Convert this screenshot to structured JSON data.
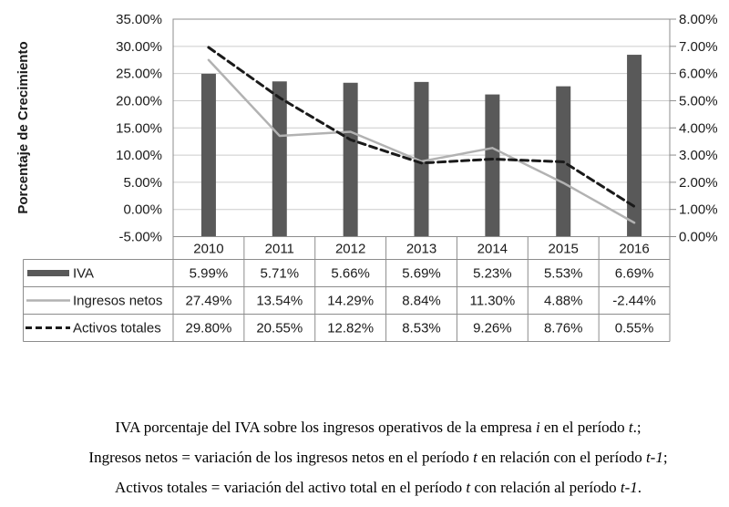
{
  "chart_data": {
    "type": "combo-bar-line",
    "title": "",
    "categories": [
      "2010",
      "2011",
      "2012",
      "2013",
      "2014",
      "2015",
      "2016"
    ],
    "series": [
      {
        "name": "IVA",
        "type": "bar",
        "axis": "right",
        "unit": "%",
        "values": [
          5.99,
          5.71,
          5.66,
          5.69,
          5.23,
          5.53,
          6.69
        ],
        "color": "#595959"
      },
      {
        "name": "Ingresos netos",
        "type": "line",
        "style": "solid",
        "axis": "left",
        "unit": "%",
        "values": [
          27.49,
          13.54,
          14.29,
          8.84,
          11.3,
          4.88,
          -2.44
        ],
        "color": "#b2b2b2"
      },
      {
        "name": "Activos totales",
        "type": "line",
        "style": "dashed",
        "axis": "left",
        "unit": "%",
        "values": [
          29.8,
          20.55,
          12.82,
          8.53,
          9.26,
          8.76,
          0.55
        ],
        "color": "#1a1a1a"
      }
    ],
    "left_axis": {
      "title": "Porcentaje de Crecimiento",
      "min": -5,
      "max": 35,
      "step": 5,
      "tick_labels": [
        "35.00%",
        "30.00%",
        "25.00%",
        "20.00%",
        "15.00%",
        "10.00%",
        "5.00%",
        "0.00%",
        "-5.00%"
      ]
    },
    "right_axis": {
      "min": 0,
      "max": 8,
      "step": 1,
      "tick_labels": [
        "8.00%",
        "7.00%",
        "6.00%",
        "5.00%",
        "4.00%",
        "3.00%",
        "2.00%",
        "1.00%",
        "0.00%"
      ]
    },
    "grid": true,
    "legend_position": "bottom-table"
  },
  "data_table": {
    "header": [
      "2010",
      "2011",
      "2012",
      "2013",
      "2014",
      "2015",
      "2016"
    ],
    "rows": [
      {
        "label": "IVA",
        "swatch": "bar-swatch",
        "values": [
          "5.99%",
          "5.71%",
          "5.66%",
          "5.69%",
          "5.23%",
          "5.53%",
          "6.69%"
        ]
      },
      {
        "label": "Ingresos netos",
        "swatch": "solid-line-swatch",
        "values": [
          "27.49%",
          "13.54%",
          "14.29%",
          "8.84%",
          "11.30%",
          "4.88%",
          "-2.44%"
        ]
      },
      {
        "label": "Activos totales",
        "swatch": "dashed-line-swatch",
        "values": [
          "29.80%",
          "20.55%",
          "12.82%",
          "8.53%",
          "9.26%",
          "8.76%",
          "0.55%"
        ]
      }
    ]
  },
  "caption": {
    "lines": [
      [
        {
          "t": "IVA porcentaje del IVA sobre los ingresos operativos de la empresa "
        },
        {
          "t": "i",
          "i": true
        },
        {
          "t": " en el período "
        },
        {
          "t": "t",
          "i": true
        },
        {
          "t": ".;"
        }
      ],
      [
        {
          "t": "Ingresos netos = variación de los ingresos netos en el período "
        },
        {
          "t": "t",
          "i": true
        },
        {
          "t": " en relación con el período "
        },
        {
          "t": "t-1",
          "i": true
        },
        {
          "t": ";"
        }
      ],
      [
        {
          "t": "Activos totales = variación del activo total en el período "
        },
        {
          "t": "t",
          "i": true
        },
        {
          "t": " con relación al período "
        },
        {
          "t": "t-1",
          "i": true
        },
        {
          "t": "."
        }
      ]
    ]
  },
  "colors": {
    "bar": "#595959",
    "solid_line": "#b2b2b2",
    "dashed_line": "#1a1a1a",
    "gridline": "#cccccc",
    "border": "#8c8c8c",
    "text": "#1a1a1a"
  }
}
